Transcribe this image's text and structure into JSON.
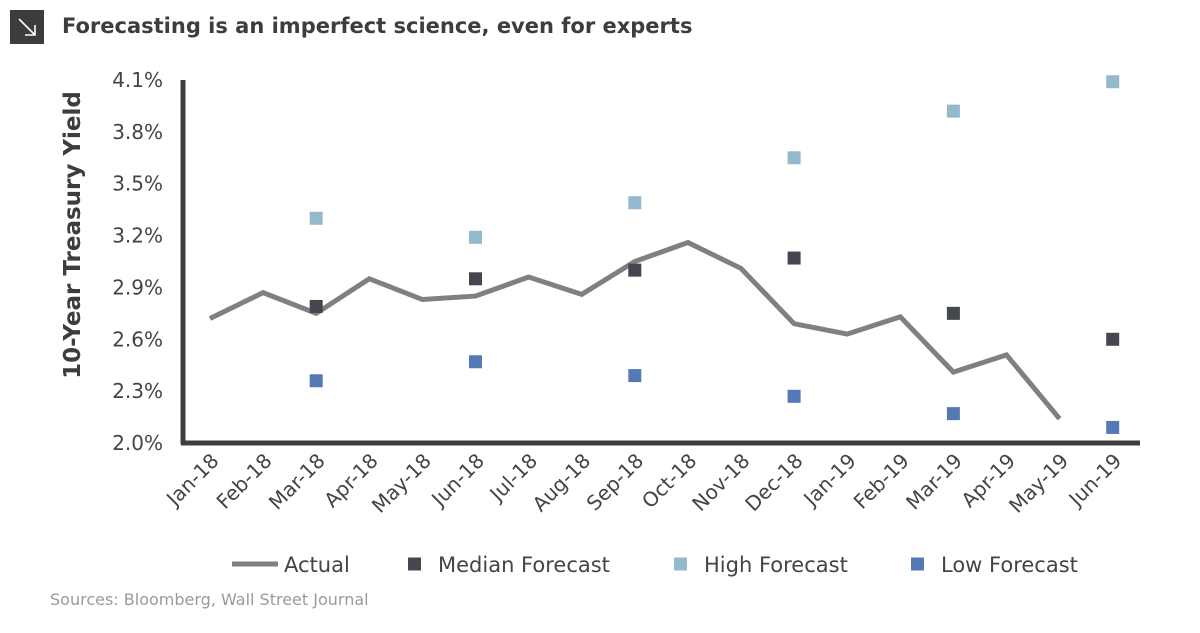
{
  "title": "Forecasting is an imperfect science, even for experts",
  "title_icon": "arrow-down-right-icon",
  "source": "Sources: Bloomberg, Wall Street Journal",
  "chart_data": {
    "type": "line",
    "title": "Forecasting is an imperfect science, even for experts",
    "ylabel": "10-Year Treasury Yield",
    "xlabel": "",
    "ylim": [
      2.0,
      4.1
    ],
    "yticks": [
      "2.0%",
      "2.3%",
      "2.6%",
      "2.9%",
      "3.2%",
      "3.5%",
      "3.8%",
      "4.1%"
    ],
    "ytick_values": [
      2.0,
      2.3,
      2.6,
      2.9,
      3.2,
      3.5,
      3.8,
      4.1
    ],
    "categories": [
      "Jan-18",
      "Feb-18",
      "Mar-18",
      "Apr-18",
      "May-18",
      "Jun-18",
      "Jul-18",
      "Aug-18",
      "Sep-18",
      "Oct-18",
      "Nov-18",
      "Dec-18",
      "Jan-19",
      "Feb-19",
      "Mar-19",
      "Apr-19",
      "May-19",
      "Jun-19"
    ],
    "grid": false,
    "legend_position": "bottom",
    "series": [
      {
        "name": "Actual",
        "kind": "line",
        "color": "#808080",
        "values": [
          2.72,
          2.87,
          2.75,
          2.95,
          2.83,
          2.85,
          2.96,
          2.86,
          3.05,
          3.16,
          3.01,
          2.69,
          2.63,
          2.73,
          2.41,
          2.51,
          2.14,
          null
        ]
      },
      {
        "name": "Median Forecast",
        "kind": "marker",
        "color": "#44474f",
        "points": {
          "Mar-18": 2.79,
          "Jun-18": 2.95,
          "Sep-18": 3.0,
          "Dec-18": 3.07,
          "Mar-19": 2.75,
          "Jun-19": 2.6
        }
      },
      {
        "name": "High Forecast",
        "kind": "marker",
        "color": "#94b8cc",
        "points": {
          "Mar-18": 3.3,
          "Jun-18": 3.19,
          "Sep-18": 3.39,
          "Dec-18": 3.65,
          "Mar-19": 3.92,
          "Jun-19": 4.09
        }
      },
      {
        "name": "Low Forecast",
        "kind": "marker",
        "color": "#5479b5",
        "points": {
          "Mar-18": 2.36,
          "Jun-18": 2.47,
          "Sep-18": 2.39,
          "Dec-18": 2.27,
          "Mar-19": 2.17,
          "Jun-19": 2.09
        }
      }
    ]
  }
}
